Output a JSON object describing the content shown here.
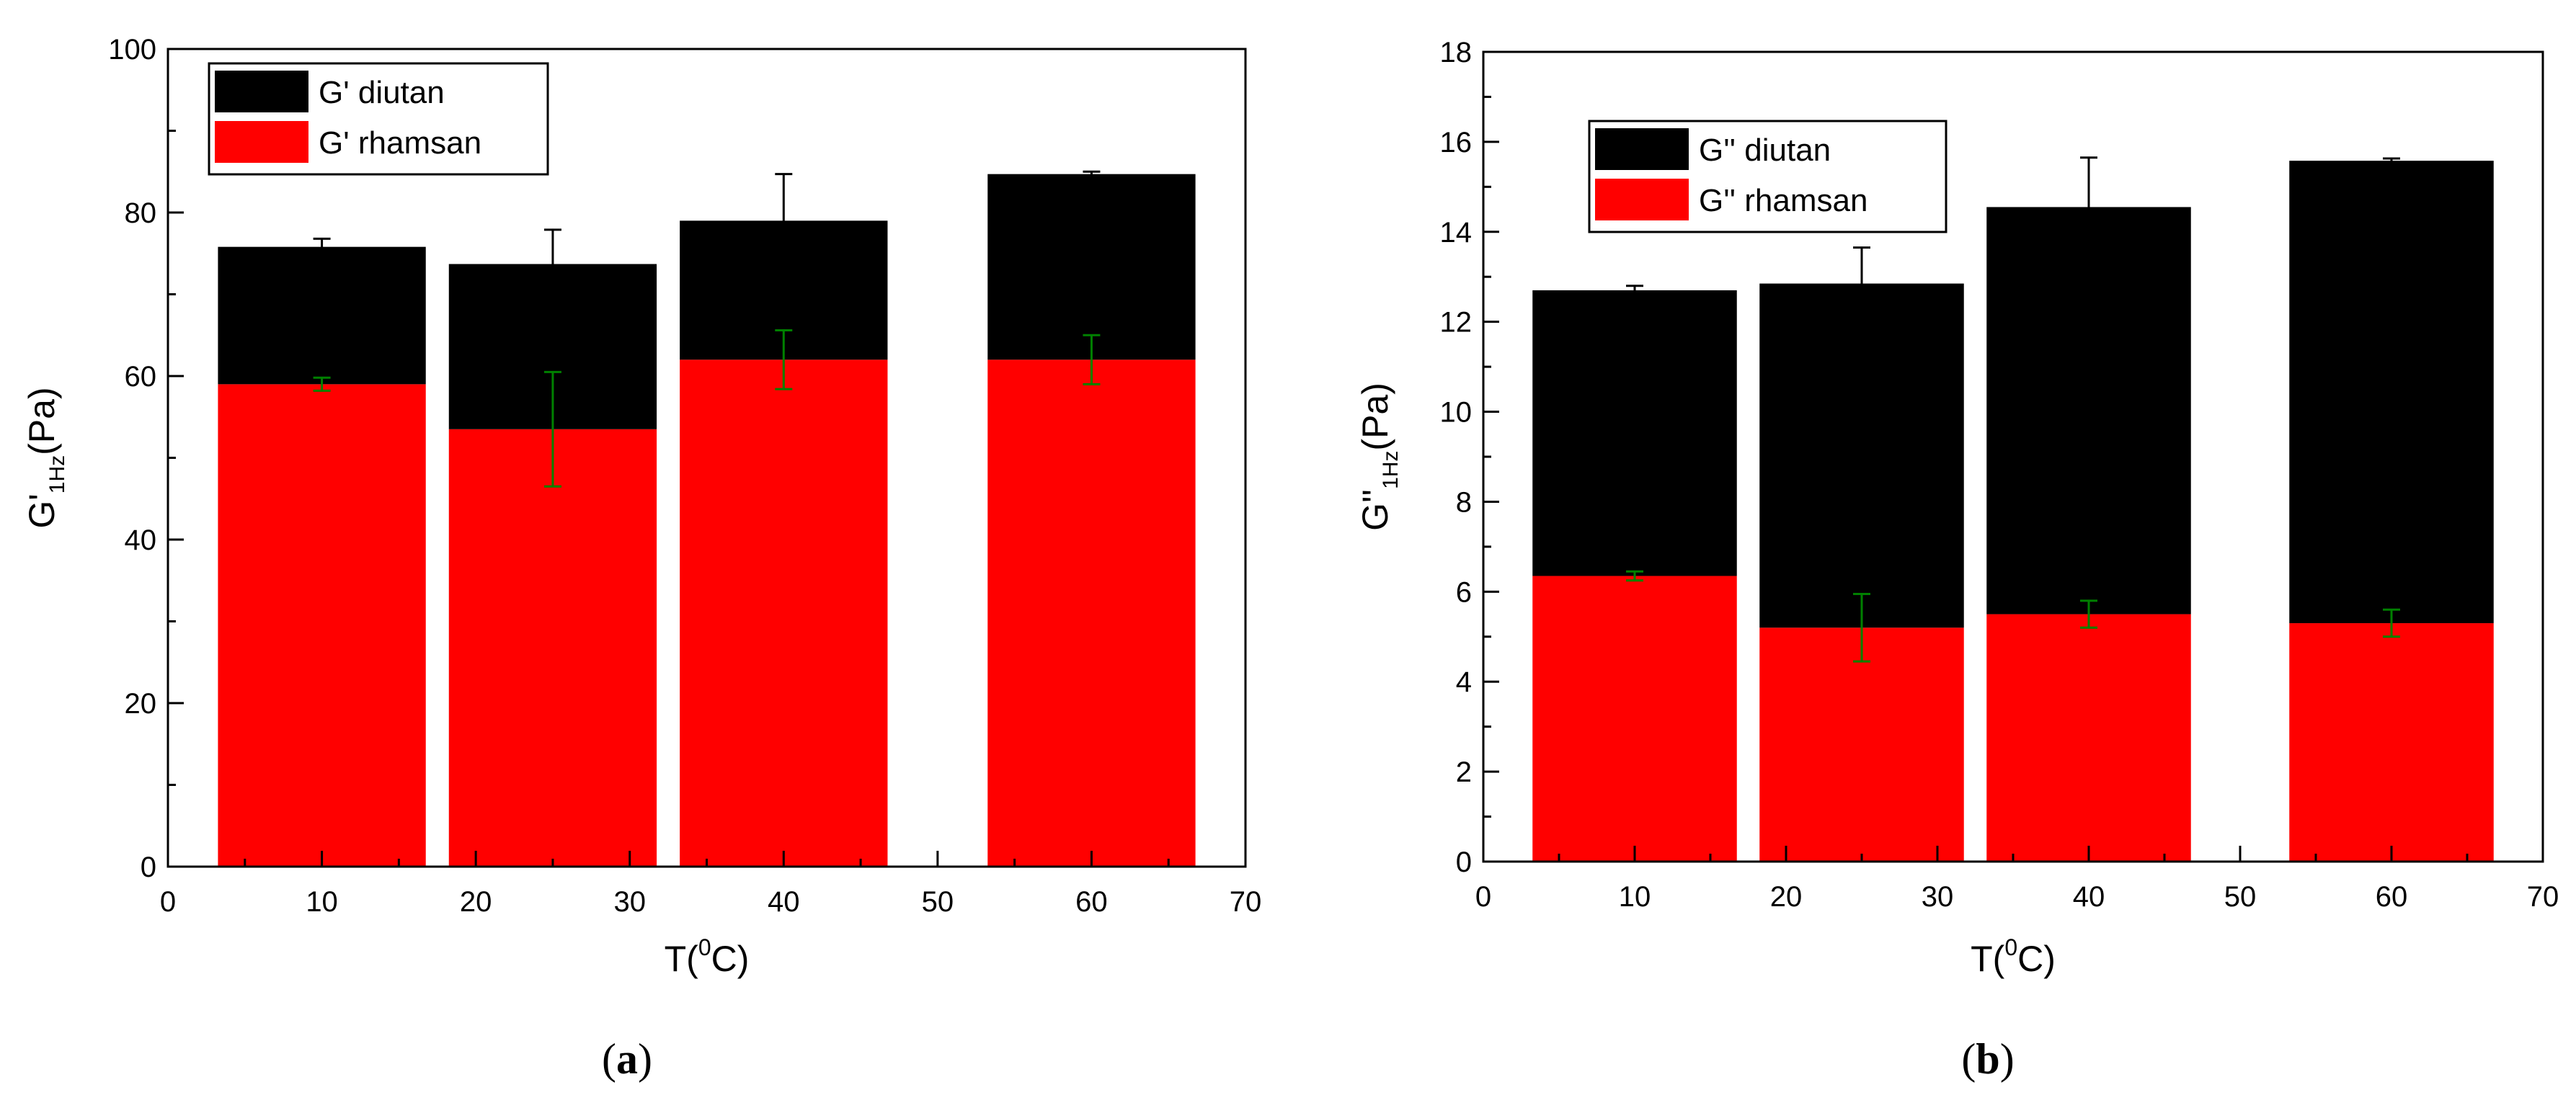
{
  "chart_data": [
    {
      "panel_id": "a",
      "type": "bar",
      "stacked": true,
      "panel_label": {
        "open": "(",
        "letter": "a",
        "close": ")"
      },
      "xlabel": {
        "prefix": "T(",
        "sup": "0",
        "suffix": "C)"
      },
      "ylabel": {
        "main": "G'",
        "sub": "1Hz",
        "suffix": "(Pa)"
      },
      "xlim": [
        0,
        70
      ],
      "ylim": [
        0,
        100
      ],
      "xticks": [
        0,
        10,
        20,
        30,
        40,
        50,
        60,
        70
      ],
      "yticks": [
        0,
        20,
        40,
        60,
        80,
        100
      ],
      "x": [
        10,
        25,
        40,
        60
      ],
      "bar_width": 13.5,
      "series": [
        {
          "name": "G' rhamsan",
          "color": "#ff0000",
          "error_color": "#008000",
          "values": [
            59.0,
            53.5,
            62.0,
            62.0
          ],
          "errors": [
            0.8,
            7.0,
            3.6,
            3.0
          ]
        },
        {
          "name": "G' diutan",
          "color": "#000000",
          "error_color": "#000000",
          "values": [
            16.8,
            20.2,
            17.0,
            22.7
          ],
          "errors": [
            1.0,
            4.2,
            5.7,
            0.3
          ]
        }
      ],
      "legend_order": [
        1,
        0
      ],
      "legend_position": "top-left",
      "grid": false
    },
    {
      "panel_id": "b",
      "type": "bar",
      "stacked": true,
      "panel_label": {
        "open": "(",
        "letter": "b",
        "close": ")"
      },
      "xlabel": {
        "prefix": "T(",
        "sup": "0",
        "suffix": "C)"
      },
      "ylabel": {
        "main": "G''",
        "sub": "1Hz",
        "suffix": "(Pa)"
      },
      "xlim": [
        0,
        70
      ],
      "ylim": [
        0,
        18
      ],
      "xticks": [
        0,
        10,
        20,
        30,
        40,
        50,
        60,
        70
      ],
      "yticks": [
        0,
        2,
        4,
        6,
        8,
        10,
        12,
        14,
        16,
        18
      ],
      "x": [
        10,
        25,
        40,
        60
      ],
      "bar_width": 13.5,
      "series": [
        {
          "name": "G'' rhamsan",
          "color": "#ff0000",
          "error_color": "#008000",
          "values": [
            6.35,
            5.2,
            5.5,
            5.3
          ],
          "errors": [
            0.1,
            0.75,
            0.3,
            0.3
          ]
        },
        {
          "name": "G'' diutan",
          "color": "#000000",
          "error_color": "#000000",
          "values": [
            6.35,
            7.65,
            9.05,
            10.28
          ],
          "errors": [
            0.1,
            0.8,
            1.1,
            0.05
          ]
        }
      ],
      "legend_order": [
        1,
        0
      ],
      "legend_position": "top-left",
      "grid": false
    }
  ]
}
